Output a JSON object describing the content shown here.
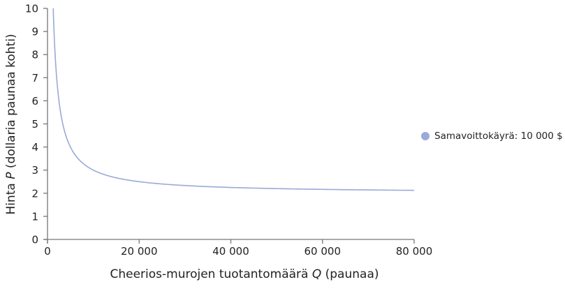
{
  "chart_data": {
    "type": "line",
    "title": "",
    "xlabel": "Cheerios-murojen tuotantomäärä Q (paunaa)",
    "ylabel": "Hinta P (dollaria paunaa kohti)",
    "xlim": [
      0,
      80000
    ],
    "ylim": [
      0,
      10
    ],
    "x_ticks": [
      0,
      20000,
      40000,
      60000,
      80000
    ],
    "x_tick_labels": [
      "0",
      "20 000",
      "40 000",
      "60 000",
      "80 000"
    ],
    "y_ticks": [
      0,
      1,
      2,
      3,
      4,
      5,
      6,
      7,
      8,
      9,
      10
    ],
    "y_tick_labels": [
      "0",
      "1",
      "2",
      "3",
      "4",
      "5",
      "6",
      "7",
      "8",
      "9",
      "10"
    ],
    "grid": false,
    "legend_position": "right",
    "series": [
      {
        "name": "Samavoittokäyrä: 10 000 $",
        "color": "#9aaad8",
        "formula": "P = 2 + 10000 / Q",
        "x": [
          1250,
          1500,
          2000,
          2500,
          3000,
          4000,
          5000,
          6000,
          8000,
          10000,
          15000,
          20000,
          30000,
          40000,
          50000,
          60000,
          70000,
          80000
        ],
        "values": [
          10.0,
          8.67,
          7.0,
          6.0,
          5.33,
          4.5,
          4.0,
          3.67,
          3.25,
          3.0,
          2.67,
          2.5,
          2.33,
          2.25,
          2.2,
          2.17,
          2.14,
          2.125
        ]
      }
    ]
  },
  "axes": {
    "x_title_main": "Cheerios-murojen tuotantomäärä ",
    "x_title_var": "Q",
    "x_title_unit": " (paunaa)",
    "y_title_main": "Hinta ",
    "y_title_var": "P",
    "y_title_unit": " (dollaria paunaa kohti)"
  },
  "legend": {
    "label": "Samavoittokäyrä: 10 000 $",
    "color": "#9aaad8"
  },
  "colors": {
    "axis": "#777777",
    "curve": "#9aaad8"
  }
}
